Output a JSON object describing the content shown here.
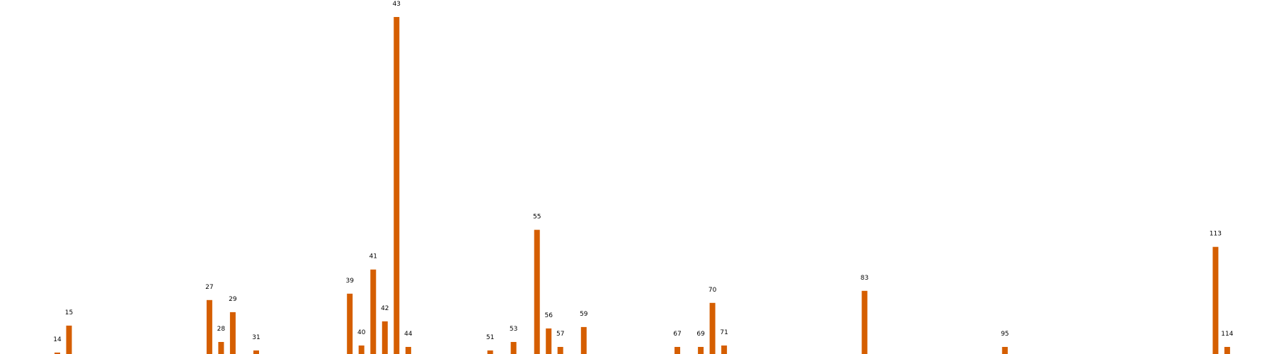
{
  "chart_data": {
    "type": "bar",
    "x": [
      14,
      15,
      27,
      28,
      29,
      31,
      39,
      40,
      41,
      42,
      43,
      44,
      51,
      53,
      55,
      56,
      57,
      59,
      67,
      69,
      70,
      71,
      83,
      95,
      113,
      114
    ],
    "values": [
      2,
      40,
      76,
      17,
      59,
      5,
      85,
      12,
      119,
      46,
      475,
      10,
      5,
      17,
      175,
      36,
      10,
      38,
      10,
      10,
      72,
      12,
      89,
      10,
      151,
      10
    ],
    "labels": [
      "14",
      "15",
      "27",
      "28",
      "29",
      "31",
      "39",
      "40",
      "41",
      "42",
      "43",
      "44",
      "51",
      "53",
      "55",
      "56",
      "57",
      "59",
      "67",
      "69",
      "70",
      "71",
      "83",
      "95",
      "113",
      "114"
    ],
    "xlim": [
      9.1,
      118
    ],
    "ylim": [
      0,
      475
    ],
    "axes_visible": false,
    "grid": false,
    "title": "",
    "xlabel": "",
    "ylabel": "",
    "bar_color": "#d55e00"
  }
}
